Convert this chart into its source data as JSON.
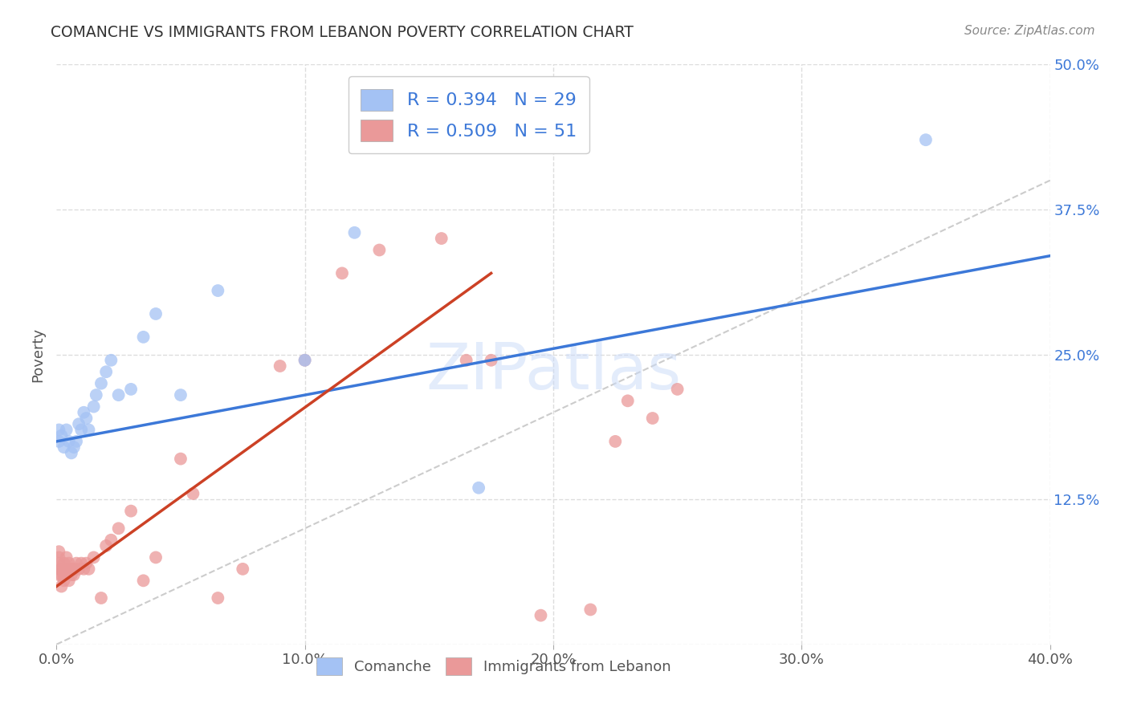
{
  "title": "COMANCHE VS IMMIGRANTS FROM LEBANON POVERTY CORRELATION CHART",
  "source": "Source: ZipAtlas.com",
  "ylabel": "Poverty",
  "xlim": [
    0.0,
    0.4
  ],
  "ylim": [
    0.0,
    0.5
  ],
  "xticks": [
    0.0,
    0.1,
    0.2,
    0.3,
    0.4
  ],
  "xtick_labels": [
    "0.0%",
    "10.0%",
    "20.0%",
    "30.0%",
    "40.0%"
  ],
  "ytick_labels_right": [
    "",
    "12.5%",
    "25.0%",
    "37.5%",
    "50.0%"
  ],
  "yticks_right": [
    0.0,
    0.125,
    0.25,
    0.375,
    0.5
  ],
  "legend_r1": "R = 0.394",
  "legend_n1": "N = 29",
  "legend_r2": "R = 0.509",
  "legend_n2": "N = 51",
  "blue_color": "#a4c2f4",
  "pink_color": "#ea9999",
  "blue_line_color": "#3c78d8",
  "pink_line_color": "#cc4125",
  "legend_text_color": "#3c78d8",
  "watermark": "ZIPatlas",
  "comanche_x": [
    0.001,
    0.001,
    0.002,
    0.003,
    0.004,
    0.005,
    0.006,
    0.007,
    0.008,
    0.009,
    0.01,
    0.011,
    0.012,
    0.013,
    0.015,
    0.016,
    0.018,
    0.02,
    0.022,
    0.025,
    0.03,
    0.035,
    0.04,
    0.05,
    0.065,
    0.1,
    0.12,
    0.17,
    0.35
  ],
  "comanche_y": [
    0.175,
    0.185,
    0.18,
    0.17,
    0.185,
    0.175,
    0.165,
    0.17,
    0.175,
    0.19,
    0.185,
    0.2,
    0.195,
    0.185,
    0.205,
    0.215,
    0.225,
    0.235,
    0.245,
    0.215,
    0.22,
    0.265,
    0.285,
    0.215,
    0.305,
    0.245,
    0.355,
    0.135,
    0.435
  ],
  "lebanon_x": [
    0.001,
    0.001,
    0.001,
    0.001,
    0.001,
    0.002,
    0.002,
    0.002,
    0.003,
    0.003,
    0.003,
    0.004,
    0.004,
    0.005,
    0.005,
    0.005,
    0.006,
    0.006,
    0.007,
    0.007,
    0.008,
    0.009,
    0.01,
    0.011,
    0.012,
    0.013,
    0.015,
    0.018,
    0.02,
    0.022,
    0.025,
    0.03,
    0.035,
    0.04,
    0.05,
    0.055,
    0.065,
    0.075,
    0.09,
    0.1,
    0.115,
    0.13,
    0.155,
    0.165,
    0.175,
    0.195,
    0.215,
    0.225,
    0.23,
    0.24,
    0.25
  ],
  "lebanon_y": [
    0.06,
    0.065,
    0.07,
    0.075,
    0.08,
    0.05,
    0.06,
    0.065,
    0.055,
    0.06,
    0.07,
    0.065,
    0.075,
    0.055,
    0.065,
    0.07,
    0.06,
    0.065,
    0.06,
    0.065,
    0.07,
    0.065,
    0.07,
    0.065,
    0.07,
    0.065,
    0.075,
    0.04,
    0.085,
    0.09,
    0.1,
    0.115,
    0.055,
    0.075,
    0.16,
    0.13,
    0.04,
    0.065,
    0.24,
    0.245,
    0.32,
    0.34,
    0.35,
    0.245,
    0.245,
    0.025,
    0.03,
    0.175,
    0.21,
    0.195,
    0.22
  ],
  "blue_line_x0": 0.0,
  "blue_line_y0": 0.175,
  "blue_line_x1": 0.4,
  "blue_line_y1": 0.335,
  "pink_line_x0": 0.0,
  "pink_line_y0": 0.05,
  "pink_line_x1": 0.175,
  "pink_line_y1": 0.32
}
